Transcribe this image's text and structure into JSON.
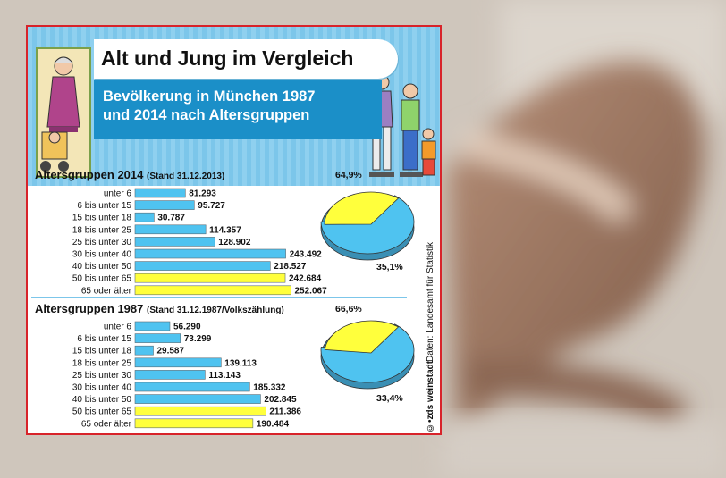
{
  "infographic": {
    "title": "Alt und Jung im Vergleich",
    "subtitle_line1": "Bevölkerung in München 1987",
    "subtitle_line2": "und 2014 nach Altersgruppen",
    "source": "Daten: Landesamt für Statistik",
    "credit": "©•zds weinstadt"
  },
  "sections": [
    {
      "heading": "Altersgruppen 2014",
      "stand": "(Stand 31.12.2013)"
    },
    {
      "heading": "Altersgruppen 1987",
      "stand": "(Stand 31.12.1987/Volkszählung)"
    }
  ],
  "colors": {
    "blue": "#4fc3f0",
    "yellow": "#ffff3c",
    "border": "#d8232a",
    "header_blue": "#1b8fc8"
  },
  "chart_data": [
    {
      "type": "bar",
      "title": "Altersgruppen 2014",
      "categories": [
        "unter 6",
        "6 bis unter 15",
        "15 bis unter 18",
        "18 bis unter 25",
        "25 bis unter 30",
        "30 bis unter 40",
        "40 bis unter 50",
        "50 bis unter 65",
        "65 oder älter"
      ],
      "values": [
        81293,
        95727,
        30787,
        114357,
        128902,
        243492,
        218527,
        242684,
        252067
      ],
      "value_labels": [
        "81.293",
        "95.727",
        "30.787",
        "114.357",
        "128.902",
        "243.492",
        "218.527",
        "242.684",
        "252.067"
      ],
      "bar_colors": [
        "#4fc3f0",
        "#4fc3f0",
        "#4fc3f0",
        "#4fc3f0",
        "#4fc3f0",
        "#4fc3f0",
        "#4fc3f0",
        "#ffff3c",
        "#ffff3c"
      ]
    },
    {
      "type": "pie",
      "labels": [
        "64,9%",
        "35,1%"
      ],
      "values": [
        64.9,
        35.1
      ],
      "colors": [
        "#4fc3f0",
        "#ffff3c"
      ]
    },
    {
      "type": "bar",
      "title": "Altersgruppen 1987",
      "categories": [
        "unter 6",
        "6 bis unter 15",
        "15 bis unter 18",
        "18 bis unter 25",
        "25 bis unter 30",
        "30 bis unter 40",
        "40 bis unter 50",
        "50 bis unter 65",
        "65 oder älter"
      ],
      "values": [
        56290,
        73299,
        29587,
        139113,
        113143,
        185332,
        202845,
        211386,
        190484
      ],
      "value_labels": [
        "56.290",
        "73.299",
        "29.587",
        "139.113",
        "113.143",
        "185.332",
        "202.845",
        "211.386",
        "190.484"
      ],
      "bar_colors": [
        "#4fc3f0",
        "#4fc3f0",
        "#4fc3f0",
        "#4fc3f0",
        "#4fc3f0",
        "#4fc3f0",
        "#4fc3f0",
        "#ffff3c",
        "#ffff3c"
      ]
    },
    {
      "type": "pie",
      "labels": [
        "66,6%",
        "33,4%"
      ],
      "values": [
        66.6,
        33.4
      ],
      "colors": [
        "#4fc3f0",
        "#ffff3c"
      ]
    }
  ]
}
